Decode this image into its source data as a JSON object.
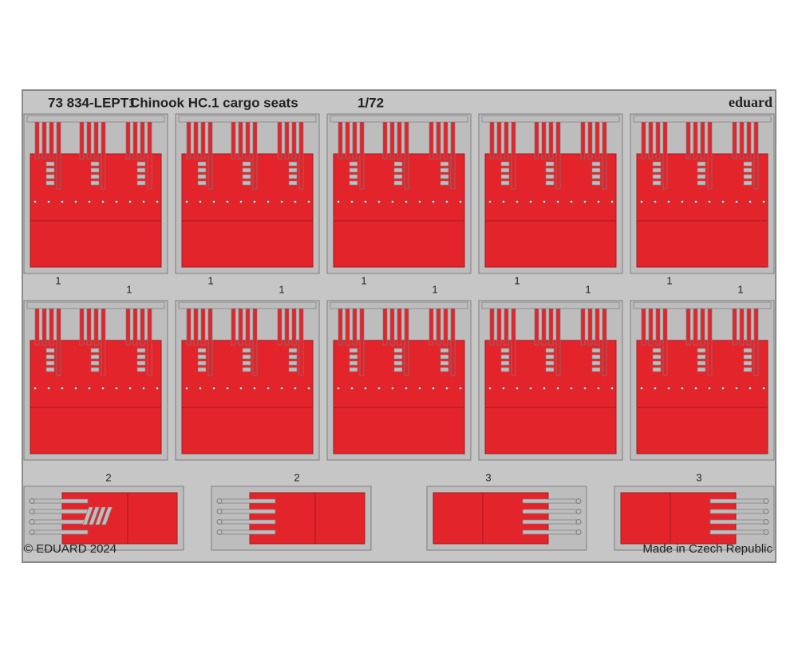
{
  "header": {
    "code": "73 834-LEPT1",
    "title": "Chinook HC.1 cargo seats",
    "scale": "1/72",
    "brand": "eduard"
  },
  "part_labels": {
    "row1": [
      "1",
      "1",
      "1",
      "1",
      "1",
      "1",
      "1",
      "1",
      "1",
      "1"
    ],
    "row3": [
      "2",
      "2",
      "3",
      "3"
    ]
  },
  "footer": {
    "copyright": "© EDUARD 2024",
    "origin": "Made in Czech Republic"
  }
}
